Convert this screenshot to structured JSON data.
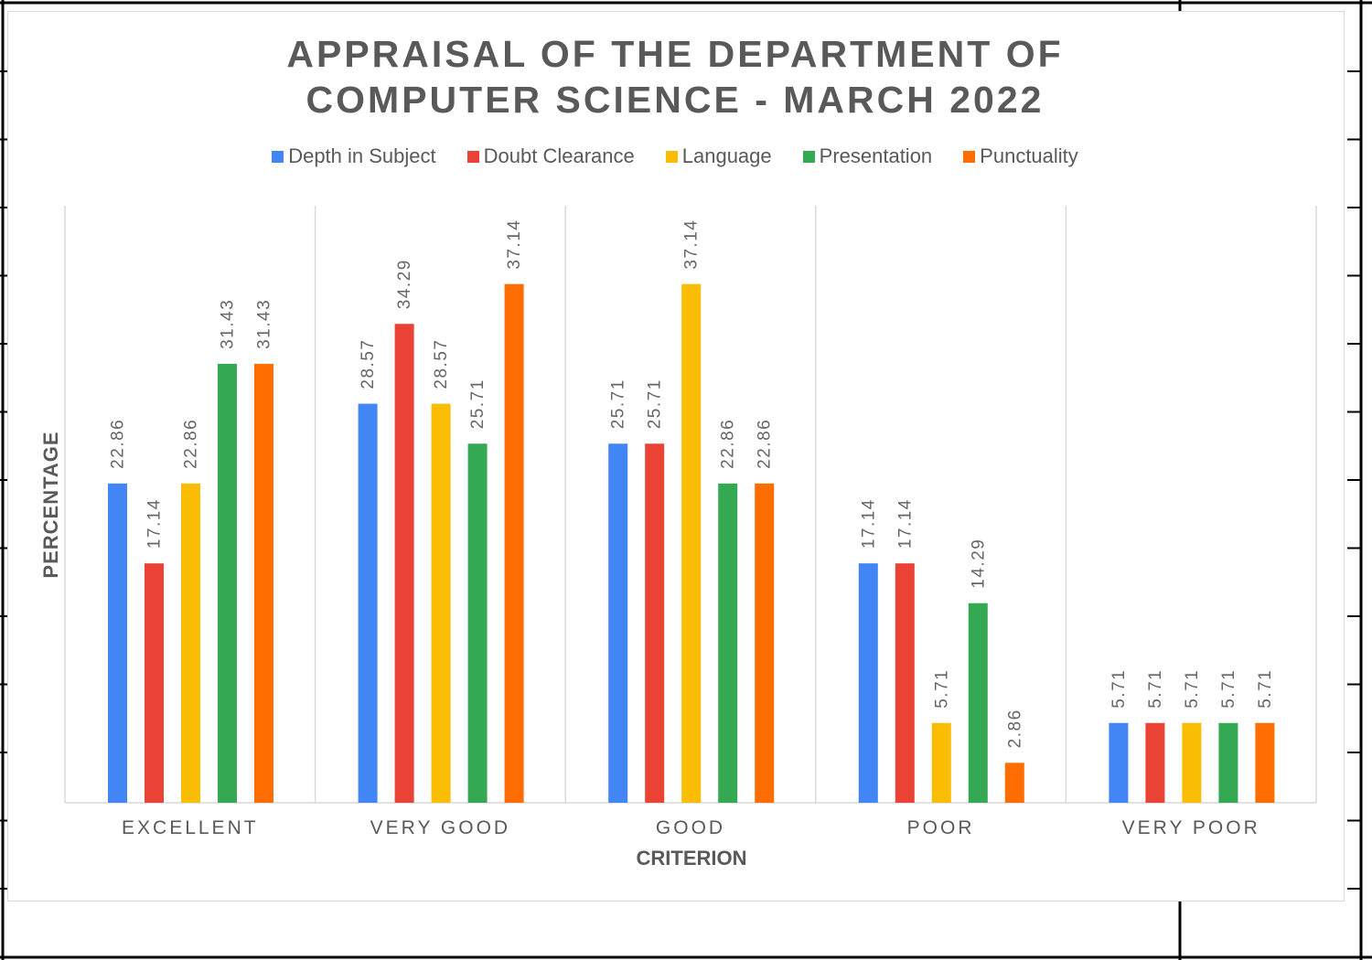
{
  "chart_data": {
    "type": "bar",
    "title_lines": [
      "APPRAISAL OF THE DEPARTMENT OF",
      "COMPUTER SCIENCE - MARCH 2022"
    ],
    "xlabel": "CRITERION",
    "ylabel": "PERCENTAGE",
    "categories": [
      "EXCELLENT",
      "VERY GOOD",
      "GOOD",
      "POOR",
      "VERY POOR"
    ],
    "series": [
      {
        "name": "Depth in Subject",
        "color": "#4285f4",
        "values": [
          22.86,
          28.57,
          25.71,
          17.14,
          5.71
        ]
      },
      {
        "name": "Doubt Clearance",
        "color": "#ea4335",
        "values": [
          17.14,
          34.29,
          25.71,
          17.14,
          5.71
        ]
      },
      {
        "name": "Language",
        "color": "#fbbc04",
        "values": [
          22.86,
          28.57,
          37.14,
          5.71,
          5.71
        ]
      },
      {
        "name": "Presentation",
        "color": "#34a853",
        "values": [
          31.43,
          25.71,
          22.86,
          14.29,
          5.71
        ]
      },
      {
        "name": "Punctuality",
        "color": "#ff6d01",
        "values": [
          31.43,
          37.14,
          22.86,
          2.86,
          5.71
        ]
      }
    ],
    "data_label_labels": [
      [
        "22.86",
        "28.57",
        "25.71",
        "17.14",
        "5.71"
      ],
      [
        "17.14",
        "34.29",
        "25.71",
        "17.14",
        "5.71"
      ],
      [
        "22.86",
        "28.57",
        "37.14",
        "5.71",
        "5.71"
      ],
      [
        "31.43",
        "25.71",
        "22.86",
        "14.29",
        "5.71"
      ],
      [
        "31.43",
        "37.14",
        "22.86",
        "2.86",
        "5.71"
      ]
    ],
    "ylim": [
      0,
      40
    ],
    "grid": "vertical category separators",
    "legend_position": "top-center"
  }
}
